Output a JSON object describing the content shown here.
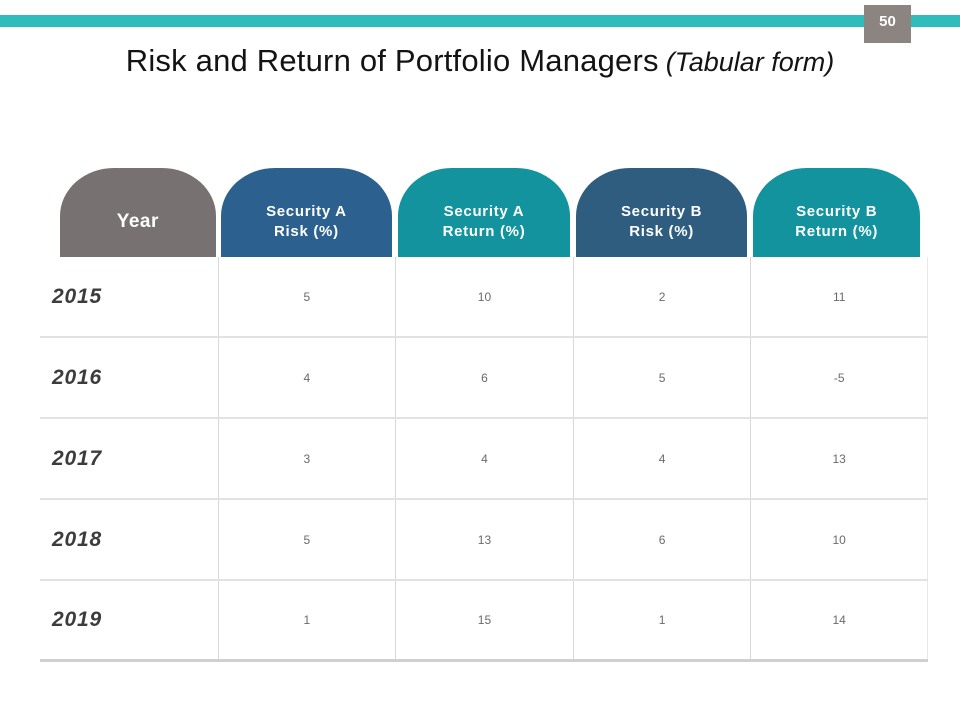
{
  "page": {
    "number": "50"
  },
  "title": {
    "main": "Risk and Return of Portfolio Managers",
    "suffix": "(Tabular form)"
  },
  "colors": {
    "accent_bar_teal": "#2ebdbb",
    "header_year_gray": "#787172",
    "header_security_a_risk_blue": "#2c618f",
    "header_security_a_return_teal": "#12939e",
    "header_security_b_risk_blue": "#2f5d80",
    "header_security_b_return_teal": "#12939e",
    "page_badge_gray": "#8b8481"
  },
  "table": {
    "columns": [
      {
        "line1": "Year",
        "line2": ""
      },
      {
        "line1": "Security A",
        "line2": "Risk (%)"
      },
      {
        "line1": "Security A",
        "line2": "Return (%)"
      },
      {
        "line1": "Security B",
        "line2": "Risk (%)"
      },
      {
        "line1": "Security B",
        "line2": "Return (%)"
      }
    ],
    "rows": [
      {
        "year": "2015",
        "values": [
          "5",
          "10",
          "2",
          "11"
        ]
      },
      {
        "year": "2016",
        "values": [
          "4",
          "6",
          "5",
          "-5"
        ]
      },
      {
        "year": "2017",
        "values": [
          "3",
          "4",
          "4",
          "13"
        ]
      },
      {
        "year": "2018",
        "values": [
          "5",
          "13",
          "6",
          "10"
        ]
      },
      {
        "year": "2019",
        "values": [
          "1",
          "15",
          "1",
          "14"
        ]
      }
    ]
  },
  "chart_data": {
    "type": "table",
    "title": "Risk and Return of Portfolio Managers (Tabular form)",
    "x": [
      2015,
      2016,
      2017,
      2018,
      2019
    ],
    "series": [
      {
        "name": "Security A Risk (%)",
        "values": [
          5,
          4,
          3,
          5,
          1
        ]
      },
      {
        "name": "Security A Return (%)",
        "values": [
          10,
          6,
          4,
          13,
          15
        ]
      },
      {
        "name": "Security B Risk (%)",
        "values": [
          2,
          5,
          4,
          6,
          1
        ]
      },
      {
        "name": "Security B Return (%)",
        "values": [
          11,
          -5,
          13,
          10,
          14
        ]
      }
    ]
  }
}
